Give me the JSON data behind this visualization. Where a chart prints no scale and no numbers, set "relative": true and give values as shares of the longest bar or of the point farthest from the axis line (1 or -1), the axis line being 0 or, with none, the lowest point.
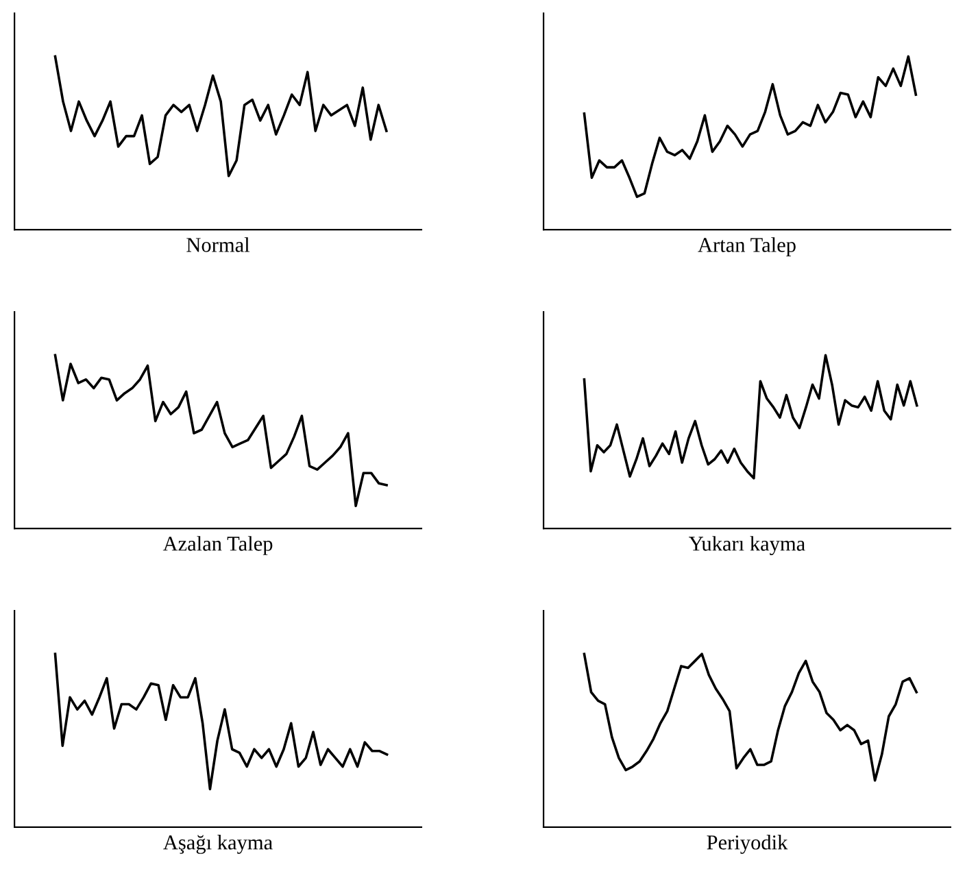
{
  "chart_data": [
    {
      "type": "line",
      "relative": true,
      "xlabel": "Normal",
      "categories": [
        null,
        null,
        null,
        null,
        null,
        null,
        null,
        null,
        null,
        null,
        null,
        null,
        null,
        null,
        null,
        null,
        null,
        null,
        null,
        null,
        null,
        null,
        null,
        null,
        null,
        null,
        null,
        null,
        null,
        null,
        null,
        null,
        null,
        null,
        null,
        null,
        null,
        null,
        null,
        null,
        null,
        null,
        null
      ],
      "series": [
        {
          "color": "#000000",
          "values": [
            1.0,
            0.74,
            0.57,
            0.74,
            0.63,
            0.54,
            0.63,
            0.74,
            0.48,
            0.54,
            0.54,
            0.66,
            0.38,
            0.42,
            0.66,
            0.72,
            0.68,
            0.72,
            0.57,
            0.72,
            0.89,
            0.74,
            0.31,
            0.4,
            0.72,
            0.75,
            0.63,
            0.72,
            0.55,
            0.66,
            0.78,
            0.72,
            0.91,
            0.57,
            0.72,
            0.66,
            0.69,
            0.72,
            0.6,
            0.82,
            0.52,
            0.72,
            0.57
          ]
        }
      ]
    },
    {
      "type": "line",
      "relative": true,
      "xlabel": "Artan Talep",
      "categories": [
        null,
        null,
        null,
        null,
        null,
        null,
        null,
        null,
        null,
        null,
        null,
        null,
        null,
        null,
        null,
        null,
        null,
        null,
        null,
        null,
        null,
        null,
        null,
        null,
        null,
        null,
        null,
        null,
        null,
        null,
        null,
        null,
        null,
        null,
        null,
        null,
        null,
        null,
        null,
        null,
        null,
        null,
        null,
        null,
        null
      ],
      "series": [
        {
          "color": "#000000",
          "values": [
            0.67,
            0.3,
            0.4,
            0.36,
            0.36,
            0.4,
            0.3,
            0.19,
            0.21,
            0.38,
            0.53,
            0.45,
            0.43,
            0.46,
            0.41,
            0.51,
            0.66,
            0.45,
            0.51,
            0.6,
            0.55,
            0.48,
            0.55,
            0.57,
            0.68,
            0.84,
            0.66,
            0.55,
            0.57,
            0.62,
            0.6,
            0.72,
            0.62,
            0.68,
            0.79,
            0.78,
            0.65,
            0.74,
            0.65,
            0.88,
            0.83,
            0.93,
            0.83,
            1.0,
            0.78
          ]
        }
      ]
    },
    {
      "type": "line",
      "relative": true,
      "xlabel": "Azalan Talep",
      "categories": [
        null,
        null,
        null,
        null,
        null,
        null,
        null,
        null,
        null,
        null,
        null,
        null,
        null,
        null,
        null,
        null,
        null,
        null,
        null,
        null,
        null,
        null,
        null,
        null,
        null,
        null,
        null,
        null,
        null,
        null,
        null,
        null,
        null,
        null,
        null,
        null,
        null,
        null,
        null,
        null,
        null,
        null,
        null,
        null
      ],
      "series": [
        {
          "color": "#000000",
          "values": [
            1.0,
            0.74,
            0.95,
            0.84,
            0.86,
            0.81,
            0.87,
            0.86,
            0.74,
            0.78,
            0.81,
            0.86,
            0.94,
            0.62,
            0.73,
            0.66,
            0.7,
            0.79,
            0.55,
            0.57,
            0.65,
            0.73,
            0.55,
            0.47,
            0.49,
            0.51,
            0.58,
            0.65,
            0.35,
            0.39,
            0.43,
            0.53,
            0.65,
            0.36,
            0.34,
            0.38,
            0.42,
            0.47,
            0.55,
            0.13,
            0.32,
            0.32,
            0.26,
            0.25
          ]
        }
      ]
    },
    {
      "type": "line",
      "relative": true,
      "xlabel": "Yukarı kayma",
      "categories": [
        null,
        null,
        null,
        null,
        null,
        null,
        null,
        null,
        null,
        null,
        null,
        null,
        null,
        null,
        null,
        null,
        null,
        null,
        null,
        null,
        null,
        null,
        null,
        null,
        null,
        null,
        null,
        null,
        null,
        null,
        null,
        null,
        null,
        null,
        null,
        null,
        null,
        null,
        null,
        null,
        null,
        null,
        null,
        null,
        null,
        null,
        null,
        null,
        null,
        null,
        null,
        null
      ],
      "series": [
        {
          "color": "#000000",
          "values": [
            0.86,
            0.33,
            0.48,
            0.44,
            0.48,
            0.6,
            0.45,
            0.3,
            0.4,
            0.52,
            0.36,
            0.42,
            0.49,
            0.43,
            0.56,
            0.38,
            0.52,
            0.62,
            0.48,
            0.37,
            0.4,
            0.45,
            0.38,
            0.46,
            0.38,
            0.33,
            0.29,
            0.85,
            0.75,
            0.7,
            0.64,
            0.77,
            0.64,
            0.58,
            0.7,
            0.83,
            0.75,
            1.0,
            0.83,
            0.6,
            0.74,
            0.71,
            0.7,
            0.76,
            0.68,
            0.85,
            0.68,
            0.63,
            0.83,
            0.71,
            0.85,
            0.71
          ]
        }
      ]
    },
    {
      "type": "line",
      "relative": true,
      "xlabel": "Aşağı kayma",
      "categories": [
        null,
        null,
        null,
        null,
        null,
        null,
        null,
        null,
        null,
        null,
        null,
        null,
        null,
        null,
        null,
        null,
        null,
        null,
        null,
        null,
        null,
        null,
        null,
        null,
        null,
        null,
        null,
        null,
        null,
        null,
        null,
        null,
        null,
        null,
        null,
        null,
        null,
        null,
        null,
        null,
        null,
        null,
        null,
        null,
        null,
        null
      ],
      "series": [
        {
          "color": "#000000",
          "values": [
            1.0,
            0.47,
            0.75,
            0.68,
            0.73,
            0.65,
            0.75,
            0.86,
            0.57,
            0.71,
            0.71,
            0.68,
            0.75,
            0.83,
            0.82,
            0.62,
            0.82,
            0.75,
            0.75,
            0.86,
            0.6,
            0.22,
            0.5,
            0.68,
            0.45,
            0.43,
            0.35,
            0.45,
            0.4,
            0.45,
            0.35,
            0.45,
            0.6,
            0.35,
            0.4,
            0.55,
            0.36,
            0.45,
            0.4,
            0.35,
            0.45,
            0.35,
            0.49,
            0.44,
            0.44,
            0.42
          ]
        }
      ]
    },
    {
      "type": "line",
      "relative": true,
      "xlabel": "Periyodik",
      "categories": [
        null,
        null,
        null,
        null,
        null,
        null,
        null,
        null,
        null,
        null,
        null,
        null,
        null,
        null,
        null,
        null,
        null,
        null,
        null,
        null,
        null,
        null,
        null,
        null,
        null,
        null,
        null,
        null,
        null,
        null,
        null,
        null,
        null,
        null,
        null,
        null,
        null,
        null,
        null,
        null,
        null,
        null,
        null,
        null,
        null,
        null,
        null,
        null,
        null
      ],
      "series": [
        {
          "color": "#000000",
          "values": [
            1.0,
            0.78,
            0.73,
            0.71,
            0.52,
            0.4,
            0.33,
            0.35,
            0.38,
            0.44,
            0.51,
            0.6,
            0.67,
            0.8,
            0.93,
            0.92,
            0.96,
            1.0,
            0.88,
            0.8,
            0.74,
            0.67,
            0.34,
            0.4,
            0.45,
            0.36,
            0.36,
            0.38,
            0.56,
            0.7,
            0.78,
            0.89,
            0.96,
            0.84,
            0.78,
            0.66,
            0.62,
            0.56,
            0.59,
            0.56,
            0.48,
            0.5,
            0.27,
            0.42,
            0.64,
            0.71,
            0.84,
            0.86,
            0.78
          ]
        }
      ]
    }
  ]
}
